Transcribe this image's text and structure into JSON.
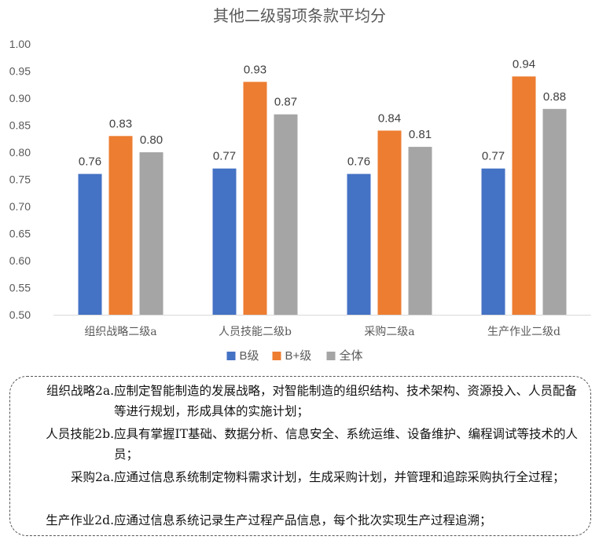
{
  "chart_data": {
    "type": "bar",
    "title": "其他二级弱项条款平均分",
    "categories": [
      "组织战略二级a",
      "人员技能二级b",
      "采购二级a",
      "生产作业二级d"
    ],
    "series": [
      {
        "name": "B级",
        "color": "#4472C4",
        "values": [
          0.76,
          0.77,
          0.76,
          0.77
        ]
      },
      {
        "name": "B+级",
        "color": "#ED7D31",
        "values": [
          0.83,
          0.93,
          0.84,
          0.94
        ]
      },
      {
        "name": "全体",
        "color": "#A5A5A5",
        "values": [
          0.8,
          0.87,
          0.81,
          0.88
        ]
      }
    ],
    "ylim": [
      0.5,
      1.0
    ],
    "yticks": [
      "0.50",
      "0.55",
      "0.60",
      "0.65",
      "0.70",
      "0.75",
      "0.80",
      "0.85",
      "0.90",
      "0.95",
      "1.00"
    ],
    "xlabel": "",
    "ylabel": "",
    "grid": false,
    "legend": "bottom"
  },
  "notes": [
    {
      "label": "组织战略2a.",
      "text": "应制定智能制造的发展战略，对智能制造的组织结构、技术架构、资源投入、人员配备等进行规划，形成具体的实施计划；"
    },
    {
      "label": "人员技能2b.",
      "text": "应具有掌握IT基础、数据分析、信息安全、系统运维、设备维护、编程调试等技术的人员；"
    },
    {
      "label": "采购2a.",
      "text": "应通过信息系统制定物料需求计划，生成采购计划，并管理和追踪采购执行全过程；"
    },
    {
      "label": "生产作业2d.",
      "text": "应通过信息系统记录生产过程产品信息，每个批次实现生产过程追溯；"
    }
  ]
}
